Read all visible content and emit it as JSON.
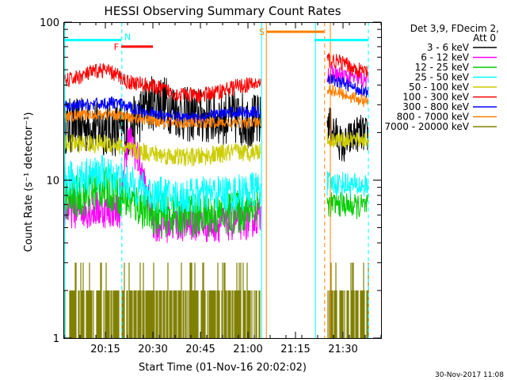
{
  "chart_data": {
    "type": "line",
    "title": "HESSI Observing Summary Count Rates",
    "xlabel": "Start Time (01-Nov-16 20:02:02)",
    "ylabel": "Count Rate (s⁻¹ detector⁻¹)",
    "x_range_min": [
      0,
      100
    ],
    "x_ticks": [
      "20:15",
      "20:30",
      "20:45",
      "21:00",
      "21:15",
      "21:30"
    ],
    "x_tick_min": [
      13,
      28,
      43,
      58,
      73,
      88
    ],
    "y_scale": "log",
    "ylim": [
      1,
      100
    ],
    "y_tick_labels": [
      "1",
      "10",
      "100"
    ],
    "legend_header": [
      "Det 3,9, FDecim 2,",
      "Att 0"
    ],
    "legend_position": "right",
    "series": [
      {
        "name": "3 - 6 keV",
        "color": "#000000",
        "segments": [
          {
            "t": [
              0,
              8,
              16,
              20,
              23,
              26,
              30,
              34,
              38,
              46,
              52,
              58,
              62
            ],
            "y": [
              22,
              22,
              21,
              20,
              24,
              30,
              32,
              29,
              26,
              25,
              25,
              24,
              23
            ],
            "noise": 0.18
          },
          {
            "t": [
              83,
              86,
              88,
              90,
              93,
              96
            ],
            "y": [
              24,
              19,
              16,
              18,
              20,
              19
            ],
            "noise": 0.12
          }
        ]
      },
      {
        "name": "6 - 12 keV",
        "color": "#ff00ff",
        "segments": [
          {
            "t": [
              0,
              10,
              18,
              20,
              22,
              24,
              26,
              28,
              30,
              34,
              40,
              46,
              52,
              58,
              62
            ],
            "y": [
              6.5,
              6.5,
              6.5,
              18,
              16,
              12,
              8,
              5.5,
              5.2,
              5.3,
              5.4,
              5.2,
              5.4,
              5.5,
              6.0
            ],
            "noise": 0.12
          },
          {
            "t": [
              83,
              88,
              92,
              96
            ],
            "y": [
              48,
              45,
              44,
              43
            ],
            "noise": 0.06
          }
        ]
      },
      {
        "name": "12 - 25 keV",
        "color": "#00cc00",
        "segments": [
          {
            "t": [
              0,
              6,
              12,
              16,
              20,
              26,
              30,
              36,
              42,
              48,
              54,
              58,
              62
            ],
            "y": [
              7.5,
              8,
              9,
              8.5,
              7.5,
              6.5,
              6,
              6,
              6,
              6,
              6.2,
              6.5,
              7.5
            ],
            "noise": 0.14
          },
          {
            "t": [
              83,
              88,
              92,
              96
            ],
            "y": [
              7,
              7,
              6.8,
              6.8
            ],
            "noise": 0.08
          }
        ]
      },
      {
        "name": "25 - 50 keV",
        "color": "#00ffff",
        "segments": [
          {
            "t": [
              0,
              6,
              12,
              16,
              20,
              26,
              30,
              36,
              42,
              48,
              54,
              58,
              62
            ],
            "y": [
              10,
              10.5,
              11,
              10.5,
              9.5,
              8.5,
              8,
              7.8,
              8,
              8.2,
              8.2,
              8.5,
              9
            ],
            "noise": 0.12
          },
          {
            "t": [
              83,
              88,
              92,
              96
            ],
            "y": [
              9.5,
              9.5,
              9.2,
              9.2
            ],
            "noise": 0.08
          }
        ]
      },
      {
        "name": "50 - 100 keV",
        "color": "#cccc00",
        "segments": [
          {
            "t": [
              0,
              8,
              16,
              20,
              26,
              30,
              36,
              42,
              48,
              54,
              58,
              62
            ],
            "y": [
              17,
              17,
              17,
              15.5,
              15,
              14.5,
              14,
              14,
              14.5,
              15,
              15,
              15.5
            ],
            "noise": 0.06
          },
          {
            "t": [
              83,
              88,
              92,
              96
            ],
            "y": [
              18,
              18,
              18,
              18
            ],
            "noise": 0.05
          }
        ]
      },
      {
        "name": "100 - 300 keV",
        "color": "#ff0000",
        "segments": [
          {
            "t": [
              0,
              6,
              12,
              16,
              20,
              26,
              30,
              36,
              42,
              48,
              54,
              58,
              62
            ],
            "y": [
              42,
              46,
              50,
              47,
              42,
              40,
              38,
              35,
              34,
              36,
              39,
              40,
              41
            ],
            "noise": 0.05
          },
          {
            "t": [
              83,
              88,
              92,
              96
            ],
            "y": [
              58,
              55,
              50,
              48
            ],
            "noise": 0.05
          }
        ]
      },
      {
        "name": "300 - 800 keV",
        "color": "#0000ff",
        "segments": [
          {
            "t": [
              0,
              8,
              16,
              20,
              26,
              30,
              36,
              42,
              48,
              54,
              58,
              62
            ],
            "y": [
              29,
              30,
              31,
              29,
              27,
              26,
              25,
              25,
              26,
              27,
              27,
              27
            ],
            "noise": 0.04
          },
          {
            "t": [
              83,
              88,
              92,
              96
            ],
            "y": [
              44,
              41,
              38,
              36
            ],
            "noise": 0.04
          }
        ]
      },
      {
        "name": "800 - 7000 keV",
        "color": "#ff8000",
        "segments": [
          {
            "t": [
              0,
              8,
              16,
              20,
              26,
              30,
              36,
              42,
              48,
              54,
              58,
              62
            ],
            "y": [
              25,
              26,
              26,
              25,
              24,
              23.5,
              23,
              23,
              23,
              23,
              23,
              23
            ],
            "noise": 0.035
          },
          {
            "t": [
              83,
              88,
              92,
              96
            ],
            "y": [
              38,
              35,
              33,
              31
            ],
            "noise": 0.04
          }
        ]
      },
      {
        "name": "7000 - 20000 keV",
        "color": "#808000",
        "segments": [
          {
            "t": [
              0,
              62
            ],
            "y": [
              1.5,
              1.5
            ],
            "bursty": true
          },
          {
            "t": [
              83,
              96
            ],
            "y": [
              1.5,
              1.5
            ],
            "bursty": true
          }
        ]
      }
    ],
    "flag_bars": [
      {
        "label": "",
        "color": "#00ffff",
        "t0": 0,
        "t1": 18,
        "y": 77
      },
      {
        "label": "",
        "color": "#00ffff",
        "t0": 79,
        "t1": 96,
        "y": 77
      },
      {
        "label": "N",
        "color": "#00ffff",
        "t0": 18,
        "t1": 18,
        "y": 81
      },
      {
        "label": "F",
        "color": "#ff0000",
        "t0": 18,
        "t1": 28,
        "y": 70
      },
      {
        "label": "S",
        "color": "#ff8000",
        "t0": 64,
        "t1": 82,
        "y": 87
      }
    ],
    "vertical_lines": [
      {
        "t": 0.2,
        "color": "#00ffff",
        "style": "solid"
      },
      {
        "t": 18.2,
        "color": "#00ffff",
        "style": "dashed"
      },
      {
        "t": 62.3,
        "color": "#00ffff",
        "style": "solid"
      },
      {
        "t": 63.8,
        "color": "#ff8000",
        "style": "solid"
      },
      {
        "t": 79.3,
        "color": "#00ffff",
        "style": "solid"
      },
      {
        "t": 82.2,
        "color": "#ff8000",
        "style": "dashed"
      },
      {
        "t": 84.0,
        "color": "#ff8000",
        "style": "solid"
      },
      {
        "t": 96.0,
        "color": "#00ffff",
        "style": "dashed"
      }
    ]
  },
  "timestamp": "30-Nov-2017 11:08"
}
